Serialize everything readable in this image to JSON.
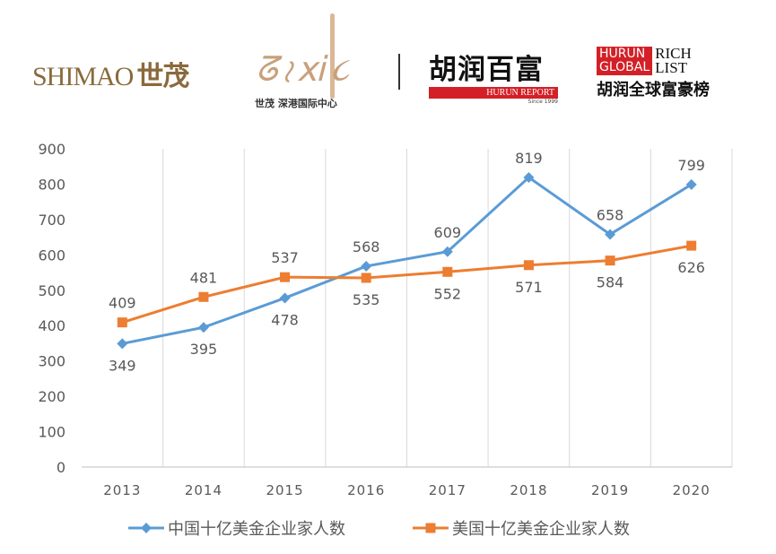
{
  "logos": {
    "shimao": {
      "latin": "SHIMAO",
      "chinese": "世茂"
    },
    "shenzhen_center": {
      "caption": "世茂 深港国际中心"
    },
    "hurun_report": {
      "chinese": "胡润百富",
      "bar": "HURUN REPORT",
      "since": "Since 1999"
    },
    "hurun_global": {
      "line1": "HURUN",
      "line2": "GLOBAL",
      "rich": "RICH",
      "list": "LIST",
      "chinese": "胡润全球富豪榜"
    }
  },
  "chart_data": {
    "type": "line",
    "categories": [
      "2013",
      "2014",
      "2015",
      "2016",
      "2017",
      "2018",
      "2019",
      "2020"
    ],
    "ylim": [
      0,
      900
    ],
    "yticks": [
      0,
      100,
      200,
      300,
      400,
      500,
      600,
      700,
      800,
      900
    ],
    "grid": "vertical",
    "legend_position": "bottom",
    "series": [
      {
        "name": "中国十亿美金企业家人数",
        "color": "#5b9bd5",
        "marker": "diamond",
        "values": [
          349,
          395,
          478,
          568,
          609,
          819,
          658,
          799
        ],
        "label_pos": [
          "below",
          "below",
          "below",
          "above",
          "above",
          "above",
          "above",
          "above"
        ]
      },
      {
        "name": "美国十亿美金企业家人数",
        "color": "#ed7d31",
        "marker": "square",
        "values": [
          409,
          481,
          537,
          535,
          552,
          571,
          584,
          626
        ],
        "label_pos": [
          "above",
          "above",
          "above",
          "below",
          "below",
          "below",
          "below",
          "below"
        ]
      }
    ]
  }
}
